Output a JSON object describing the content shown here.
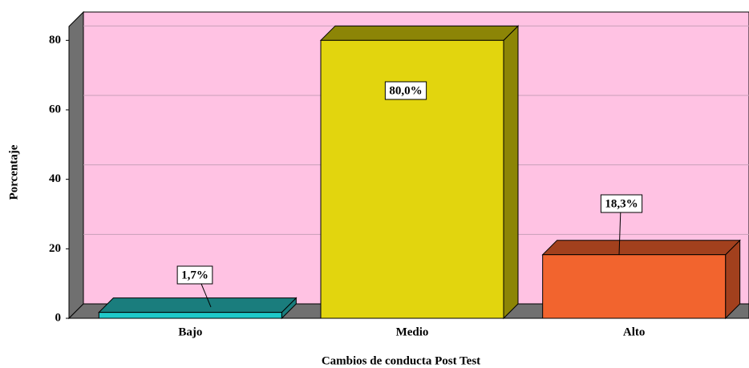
{
  "chart_data": {
    "type": "bar",
    "x_label": "Cambios de conducta Post Test",
    "y_label": "Porcentaje",
    "categories": [
      "Bajo",
      "Medio",
      "Alto"
    ],
    "values": [
      1.7,
      80.0,
      18.3
    ],
    "value_labels": [
      "1,7%",
      "80,0%",
      "18,3%"
    ],
    "colors": [
      "#1fc8c8",
      "#e2d50e",
      "#f2642e"
    ],
    "top_colors": [
      "#1a7d7d",
      "#8c8506",
      "#a2401d"
    ],
    "ylim": [
      0,
      84
    ],
    "yticks": [
      0,
      20,
      40,
      60,
      80
    ],
    "grid": true,
    "background": "#ffc2e3"
  }
}
